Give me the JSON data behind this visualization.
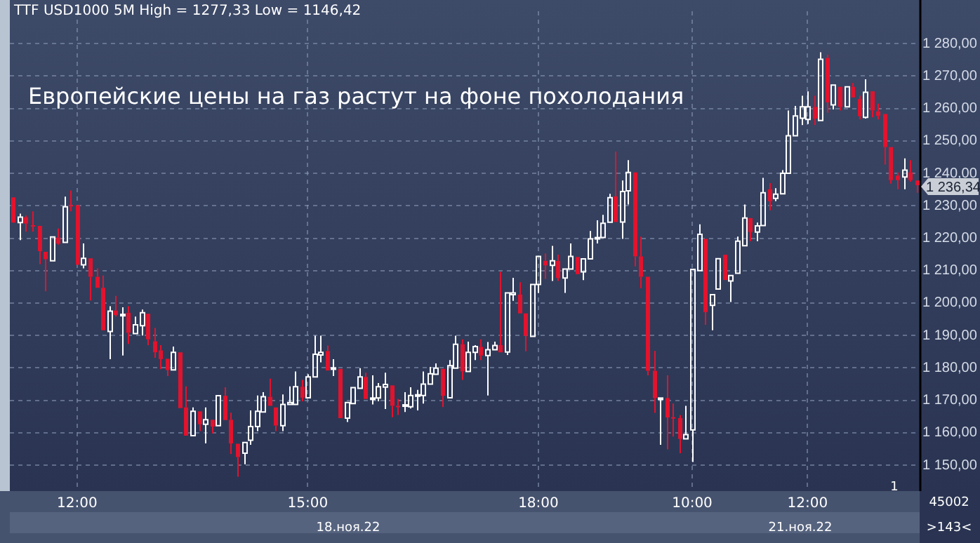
{
  "chart_data": {
    "type": "candlestick",
    "title": "TTF USD1000 5M High = 1277,33 Low = 1146,42",
    "subtitle": "Европейские цены на газ растут на фоне похолодания",
    "categories": [
      null,
      null,
      null,
      null,
      null,
      null,
      null,
      null,
      null,
      null,
      "12:00",
      null,
      null,
      null,
      null,
      null,
      null,
      null,
      null,
      null,
      null,
      null,
      null,
      null,
      null,
      null,
      null,
      null,
      null,
      null,
      null,
      null,
      null,
      null,
      null,
      null,
      null,
      null,
      null,
      null,
      null,
      null,
      null,
      null,
      null,
      null,
      "15:00",
      null,
      null,
      null,
      null,
      null,
      null,
      null,
      null,
      null,
      null,
      null,
      null,
      null,
      null,
      null,
      null,
      null,
      null,
      null,
      null,
      null,
      null,
      null,
      null,
      null,
      null,
      null,
      null,
      null,
      null,
      null,
      null,
      null,
      null,
      null,
      "18:00",
      null,
      null,
      null,
      null,
      null,
      null,
      null,
      null,
      null,
      null,
      null,
      null,
      null,
      null,
      null,
      null,
      null,
      null,
      null,
      null,
      null,
      null,
      null,
      "10:00",
      null,
      null,
      null,
      null,
      null,
      null,
      null,
      null,
      null,
      null,
      null,
      null,
      null,
      null,
      null,
      null,
      null,
      "12:00",
      null,
      null,
      null,
      null,
      null,
      null,
      null,
      null,
      null,
      null,
      null,
      null,
      null,
      null,
      null,
      null,
      null
    ],
    "ohlc": [
      [
        1232.6,
        1232.6,
        1224.8,
        1224.8
      ],
      [
        1224.8,
        1227.6,
        1219.4,
        1226.5
      ],
      [
        1226.5,
        1227,
        1222,
        1224.5
      ],
      [
        1224,
        1228.3,
        1222,
        1223.8
      ],
      [
        1223.8,
        1223.8,
        1212,
        1216
      ],
      [
        1215.8,
        1215.8,
        1203.6,
        1213.5
      ],
      [
        1213,
        1220.4,
        1213,
        1220.4
      ],
      [
        1220.2,
        1223,
        1218,
        1218.3
      ],
      [
        1218.7,
        1232.8,
        1218.7,
        1229.7
      ],
      [
        1230.2,
        1234.7,
        1228.3,
        1229.8
      ],
      [
        1230.2,
        1230.2,
        1211.8,
        1211.8
      ],
      [
        1211.8,
        1218.4,
        1210.7,
        1213.8
      ],
      [
        1213.8,
        1213.8,
        1200.8,
        1208.1
      ],
      [
        1208.1,
        1210.7,
        1204.7,
        1204.7
      ],
      [
        1204.7,
        1208.5,
        1191.6,
        1191.6
      ],
      [
        1191.2,
        1199,
        1182.7,
        1197.5
      ],
      [
        1197.7,
        1202.2,
        1195.8,
        1196.3
      ],
      [
        1196.5,
        1198.7,
        1183.8,
        1196.5
      ],
      [
        1197,
        1199,
        1187.4,
        1190.8
      ],
      [
        1190.6,
        1195.8,
        1190.6,
        1193.3
      ],
      [
        1193,
        1198,
        1190,
        1197
      ],
      [
        1196.7,
        1196.7,
        1187,
        1188.8
      ],
      [
        1188.2,
        1192.3,
        1183.1,
        1184.8
      ],
      [
        1185.4,
        1187,
        1179.6,
        1182.7
      ],
      [
        1182.8,
        1182.8,
        1177.5,
        1179.3
      ],
      [
        1179.4,
        1186.6,
        1179.4,
        1184.8
      ],
      [
        1184.8,
        1184.8,
        1167.6,
        1167.6
      ],
      [
        1167.8,
        1174.3,
        1159.1,
        1159.1
      ],
      [
        1159.1,
        1167.8,
        1159.1,
        1166.6
      ],
      [
        1166.6,
        1166.6,
        1160.5,
        1162.6
      ],
      [
        1162.6,
        1167.8,
        1156.7,
        1164
      ],
      [
        1164,
        1164,
        1159.8,
        1161.9
      ],
      [
        1162.2,
        1171.4,
        1162.2,
        1171.4
      ],
      [
        1171.4,
        1174,
        1163.9,
        1163.9
      ],
      [
        1164,
        1166.2,
        1153.4,
        1156.7
      ],
      [
        1156.6,
        1156.6,
        1146.42,
        1152.5
      ],
      [
        1153.7,
        1157,
        1150.3,
        1157
      ],
      [
        1157.7,
        1166.9,
        1156.3,
        1161.9
      ],
      [
        1161.9,
        1171.5,
        1160.5,
        1166.6
      ],
      [
        1166.4,
        1172.5,
        1166.4,
        1171.1
      ],
      [
        1171.1,
        1176.7,
        1168.3,
        1168.3
      ],
      [
        1167.8,
        1167.8,
        1160.5,
        1162.2
      ],
      [
        1162.2,
        1171.8,
        1160.5,
        1168.7
      ],
      [
        1168.7,
        1174.3,
        1168.7,
        1169.3
      ],
      [
        1168.7,
        1178.9,
        1168.7,
        1174.2
      ],
      [
        1174.2,
        1176.3,
        1169.7,
        1170.8
      ],
      [
        1170.8,
        1178,
        1170.8,
        1177.2
      ],
      [
        1177.2,
        1189.9,
        1177.2,
        1184.2
      ],
      [
        1184,
        1189.9,
        1181.7,
        1184.8
      ],
      [
        1185.2,
        1186.9,
        1179.2,
        1179.2
      ],
      [
        1180,
        1182.7,
        1177.5,
        1180
      ],
      [
        1179.7,
        1179.7,
        1164.5,
        1164.5
      ],
      [
        1164.5,
        1169.3,
        1163.3,
        1169.3
      ],
      [
        1169,
        1173.9,
        1169,
        1173.9
      ],
      [
        1173.7,
        1179.9,
        1173.7,
        1177.2
      ],
      [
        1177.2,
        1178.5,
        1170.4,
        1170.4
      ],
      [
        1170.6,
        1177.7,
        1168.7,
        1170.7
      ],
      [
        1170.7,
        1175.3,
        1169.7,
        1174.2
      ],
      [
        1174.1,
        1178.5,
        1167.3,
        1174.9
      ],
      [
        1174.6,
        1174.6,
        1164.8,
        1168.3
      ],
      [
        1168.3,
        1170.4,
        1165.5,
        1168.1
      ],
      [
        1168.3,
        1172.5,
        1166.4,
        1168.6
      ],
      [
        1168,
        1174,
        1167.5,
        1171.5
      ],
      [
        1171.5,
        1173.2,
        1166.9,
        1171.7
      ],
      [
        1171.5,
        1178.9,
        1169,
        1175
      ],
      [
        1175,
        1180.3,
        1175,
        1178.2
      ],
      [
        1178,
        1181.4,
        1178,
        1179.9
      ],
      [
        1179.7,
        1179.7,
        1167.9,
        1171.4
      ],
      [
        1170.8,
        1182.4,
        1170.8,
        1180.7
      ],
      [
        1179.9,
        1189.9,
        1179.9,
        1187.3
      ],
      [
        1187.3,
        1188.8,
        1176.3,
        1178.9
      ],
      [
        1178.9,
        1188.1,
        1178.9,
        1184.8
      ],
      [
        1184.8,
        1187,
        1182.4,
        1186.6
      ],
      [
        1186.5,
        1188.8,
        1182.4,
        1183.8
      ],
      [
        1183.8,
        1188,
        1171.5,
        1185.6
      ],
      [
        1185.6,
        1188.1,
        1185.6,
        1186.9
      ],
      [
        1187,
        1209.6,
        1184.8,
        1184.8
      ],
      [
        1184.9,
        1203.1,
        1184,
        1203.1
      ],
      [
        1202.6,
        1207.8,
        1200.7,
        1203.1
      ],
      [
        1202.6,
        1206.4,
        1196.8,
        1196.8
      ],
      [
        1196.8,
        1196.8,
        1185.1,
        1189.9
      ],
      [
        1189.7,
        1205.7,
        1189.7,
        1205.7
      ],
      [
        1205.7,
        1214.4,
        1203.1,
        1214.4
      ],
      [
        1213,
        1215.3,
        1207.4,
        1211.6
      ],
      [
        1211.6,
        1217.6,
        1206.8,
        1213
      ],
      [
        1213,
        1214.9,
        1206.8,
        1207.7
      ],
      [
        1207.7,
        1210.5,
        1203.1,
        1210.5
      ],
      [
        1210.5,
        1218.4,
        1210.5,
        1214.4
      ],
      [
        1214.2,
        1214.2,
        1208.9,
        1208.9
      ],
      [
        1209.6,
        1213.8,
        1207.1,
        1213.6
      ],
      [
        1213.6,
        1222.2,
        1213.6,
        1219.8
      ],
      [
        1219.8,
        1225.5,
        1218.4,
        1220.2
      ],
      [
        1220.2,
        1227.2,
        1220.2,
        1224.6
      ],
      [
        1224.9,
        1233.7,
        1224.9,
        1232.5
      ],
      [
        1232.9,
        1246.7,
        1225,
        1225
      ],
      [
        1225,
        1237.8,
        1219.8,
        1234.4
      ],
      [
        1234.6,
        1244.1,
        1230.4,
        1240.3
      ],
      [
        1240.3,
        1240.3,
        1211.3,
        1214.4
      ],
      [
        1214.4,
        1220.5,
        1204.6,
        1208.1
      ],
      [
        1208.1,
        1208.1,
        1177.7,
        1179.1
      ],
      [
        1179.1,
        1185.2,
        1166.1,
        1170.7
      ],
      [
        1170.6,
        1170.7,
        1156.3,
        1170.7
      ],
      [
        1170.7,
        1177.7,
        1154.9,
        1164.7
      ],
      [
        1164.8,
        1169,
        1158.8,
        1164.5
      ],
      [
        1164.5,
        1165.4,
        1153.7,
        1158.1
      ],
      [
        1158.1,
        1168.3,
        1158.1,
        1159.4
      ],
      [
        1160.9,
        1210.4,
        1151,
        1210.4
      ],
      [
        1210,
        1224.3,
        1210,
        1221.2
      ],
      [
        1219.8,
        1219.8,
        1193.3,
        1197.2
      ],
      [
        1199.3,
        1202.6,
        1191.6,
        1202.6
      ],
      [
        1204.3,
        1213.7,
        1204.3,
        1213.7
      ],
      [
        1214.9,
        1214.9,
        1207.1,
        1207.1
      ],
      [
        1206.8,
        1208.5,
        1200.3,
        1208.5
      ],
      [
        1209.2,
        1220.5,
        1209.2,
        1219.1
      ],
      [
        1217.7,
        1230.4,
        1217.7,
        1226.2
      ],
      [
        1226.2,
        1226.2,
        1219.1,
        1221.9
      ],
      [
        1221.9,
        1224.8,
        1219.1,
        1223.8
      ],
      [
        1223.9,
        1238.6,
        1223.9,
        1234
      ],
      [
        1235.1,
        1237,
        1228.6,
        1231.4
      ],
      [
        1232.3,
        1235.4,
        1231.4,
        1233.6
      ],
      [
        1233.7,
        1241,
        1233.7,
        1240
      ],
      [
        1240,
        1259.4,
        1240,
        1251.6
      ],
      [
        1251.6,
        1260.8,
        1251.6,
        1257.7
      ],
      [
        1257,
        1263.9,
        1254.9,
        1260.5
      ],
      [
        1256.6,
        1265.3,
        1255.2,
        1260.5
      ],
      [
        1260.5,
        1263.9,
        1254.9,
        1256.9
      ],
      [
        1256.3,
        1277.33,
        1256.3,
        1275.2
      ],
      [
        1275.6,
        1276.6,
        1258.7,
        1261.9
      ],
      [
        1261.1,
        1267.2,
        1259.7,
        1267.2
      ],
      [
        1266.7,
        1266.7,
        1259.4,
        1260.5
      ],
      [
        1260.5,
        1266.7,
        1260.5,
        1266.7
      ],
      [
        1266.7,
        1267.9,
        1263.4,
        1263.4
      ],
      [
        1262.9,
        1263.9,
        1256.6,
        1257.6
      ],
      [
        1257.3,
        1269,
        1256.9,
        1265
      ],
      [
        1265.3,
        1265.3,
        1257.3,
        1259.4
      ],
      [
        1259.1,
        1261.5,
        1256.6,
        1257.7
      ],
      [
        1258.3,
        1258.3,
        1242.7,
        1248.1
      ],
      [
        1248.1,
        1248.1,
        1236.8,
        1237.9
      ],
      [
        1239.3,
        1240.3,
        1235.1,
        1237.9
      ],
      [
        1238.9,
        1244.6,
        1235.1,
        1241
      ],
      [
        1240.3,
        1244.1,
        1237.4,
        1237.9
      ],
      [
        1237.8,
        1237.8,
        1234,
        1236.34
      ]
    ],
    "colors": [
      "#e3122d",
      "#ffffff",
      "#e3122d",
      "#e3122d",
      "#e3122d",
      "#e3122d",
      "#ffffff",
      "#e3122d",
      "#ffffff",
      "#e3122d",
      "#e3122d",
      "#ffffff",
      "#e3122d",
      "#e3122d",
      "#e3122d",
      "#ffffff",
      "#e3122d",
      "#ffffff",
      "#e3122d",
      "#ffffff",
      "#ffffff",
      "#e3122d",
      "#e3122d",
      "#e3122d",
      "#e3122d",
      "#ffffff",
      "#e3122d",
      "#e3122d",
      "#ffffff",
      "#e3122d",
      "#ffffff",
      "#e3122d",
      "#ffffff",
      "#e3122d",
      "#e3122d",
      "#e3122d",
      "#ffffff",
      "#ffffff",
      "#ffffff",
      "#ffffff",
      "#e3122d",
      "#e3122d",
      "#ffffff",
      "#ffffff",
      "#ffffff",
      "#e3122d",
      "#ffffff",
      "#ffffff",
      "#ffffff",
      "#e3122d",
      "#ffffff",
      "#e3122d",
      "#ffffff",
      "#ffffff",
      "#ffffff",
      "#e3122d",
      "#ffffff",
      "#ffffff",
      "#ffffff",
      "#e3122d",
      "#e3122d",
      "#ffffff",
      "#ffffff",
      "#ffffff",
      "#ffffff",
      "#ffffff",
      "#ffffff",
      "#e3122d",
      "#ffffff",
      "#ffffff",
      "#e3122d",
      "#ffffff",
      "#ffffff",
      "#e3122d",
      "#ffffff",
      "#ffffff",
      "#e3122d",
      "#ffffff",
      "#ffffff",
      "#e3122d",
      "#e3122d",
      "#ffffff",
      "#ffffff",
      "#e3122d",
      "#ffffff",
      "#e3122d",
      "#ffffff",
      "#ffffff",
      "#e3122d",
      "#ffffff",
      "#ffffff",
      "#ffffff",
      "#ffffff",
      "#ffffff",
      "#e3122d",
      "#ffffff",
      "#ffffff",
      "#e3122d",
      "#e3122d",
      "#e3122d",
      "#e3122d",
      "#ffffff",
      "#e3122d",
      "#e3122d",
      "#e3122d",
      "#ffffff",
      "#ffffff",
      "#ffffff",
      "#e3122d",
      "#ffffff",
      "#ffffff",
      "#e3122d",
      "#ffffff",
      "#ffffff",
      "#ffffff",
      "#e3122d",
      "#ffffff",
      "#ffffff",
      "#e3122d",
      "#ffffff",
      "#ffffff",
      "#ffffff",
      "#ffffff",
      "#ffffff",
      "#ffffff",
      "#e3122d",
      "#ffffff",
      "#e3122d",
      "#ffffff",
      "#e3122d",
      "#ffffff",
      "#e3122d",
      "#e3122d",
      "#ffffff",
      "#e3122d",
      "#e3122d",
      "#e3122d",
      "#e3122d",
      "#e3122d",
      "#ffffff",
      "#e3122d",
      "#e3122d"
    ],
    "ylim": [
      1142,
      1290
    ],
    "yticks": [
      {
        "value": 1150,
        "label": "1 150,00"
      },
      {
        "value": 1160,
        "label": "1 160,00"
      },
      {
        "value": 1170,
        "label": "1 170,00"
      },
      {
        "value": 1180,
        "label": "1 180,00"
      },
      {
        "value": 1190,
        "label": "1 190,00"
      },
      {
        "value": 1200,
        "label": "1 200,00"
      },
      {
        "value": 1210,
        "label": "1 210,00"
      },
      {
        "value": 1220,
        "label": "1 220,00"
      },
      {
        "value": 1230,
        "label": "1 230,00"
      },
      {
        "value": 1240,
        "label": "1 240,00"
      },
      {
        "value": 1250,
        "label": "1 250,00"
      },
      {
        "value": 1260,
        "label": "1 260,00"
      },
      {
        "value": 1270,
        "label": "1 270,00"
      },
      {
        "value": 1280,
        "label": "1 280,00"
      }
    ],
    "grid": true,
    "annotations": [
      "1 236,34",
      "18.ноя.22",
      "21.ноя.22",
      "45002",
      ">143<",
      "1"
    ]
  }
}
